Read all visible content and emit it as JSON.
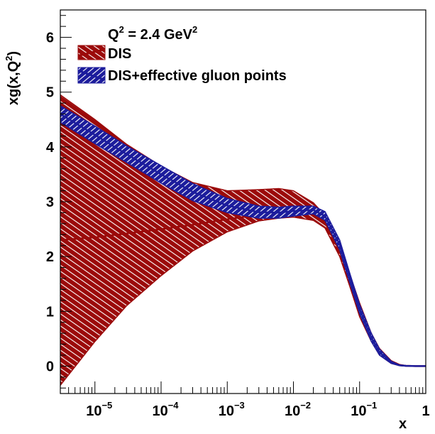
{
  "chart_data": {
    "type": "area",
    "title": "",
    "annotation": "Q2 = 2.4 GeV2",
    "annotation_parts": {
      "q": "Q",
      "q_exp": "2",
      "mid": " = 2.4 GeV",
      "unit_exp": "2"
    },
    "xlabel": "x",
    "ylabel_parts": {
      "base": "xg(x,Q",
      "exp": "2",
      "close": ")"
    },
    "xscale": "log",
    "xlim": [
      3e-06,
      1
    ],
    "ylim": [
      -0.5,
      6.5
    ],
    "x_ticks": [
      {
        "value": 1e-05,
        "base": "10",
        "exp": "−5"
      },
      {
        "value": 0.0001,
        "base": "10",
        "exp": "−4"
      },
      {
        "value": 0.001,
        "base": "10",
        "exp": "−3"
      },
      {
        "value": 0.01,
        "base": "10",
        "exp": "−2"
      },
      {
        "value": 0.1,
        "base": "10",
        "exp": "−1"
      },
      {
        "value": 1,
        "base": "1",
        "exp": ""
      }
    ],
    "y_ticks": [
      0,
      1,
      2,
      3,
      4,
      5,
      6
    ],
    "series": [
      {
        "name": "DIS",
        "color": "#9b0a0a",
        "hatch_color": "#ffffff",
        "x": [
          3e-06,
          1e-05,
          3e-05,
          0.0001,
          0.0003,
          0.001,
          0.003,
          0.006,
          0.01,
          0.02,
          0.03,
          0.05,
          0.07,
          0.1,
          0.15,
          0.2,
          0.3,
          0.4,
          0.5,
          0.7,
          1
        ],
        "upper": [
          4.95,
          4.5,
          4.05,
          3.65,
          3.35,
          3.2,
          3.22,
          3.24,
          3.2,
          2.98,
          2.75,
          2.25,
          1.7,
          1.15,
          0.6,
          0.32,
          0.1,
          0.03,
          0.01,
          0.0,
          0.0
        ],
        "central": [
          2.3,
          2.35,
          2.42,
          2.5,
          2.58,
          2.68,
          2.76,
          2.8,
          2.82,
          2.78,
          2.62,
          2.1,
          1.58,
          1.0,
          0.52,
          0.26,
          0.07,
          0.02,
          0.005,
          0.0,
          0.0
        ],
        "lower": [
          -0.35,
          0.45,
          1.1,
          1.65,
          2.1,
          2.45,
          2.65,
          2.7,
          2.72,
          2.66,
          2.52,
          2.0,
          1.48,
          0.9,
          0.45,
          0.2,
          0.05,
          0.01,
          0.0,
          0.0,
          0.0
        ]
      },
      {
        "name": "DIS+effective gluon points",
        "color": "#1c1c9c",
        "hatch_color": "#ffffff",
        "x": [
          3e-06,
          1e-05,
          3e-05,
          0.0001,
          0.0003,
          0.001,
          0.003,
          0.006,
          0.01,
          0.02,
          0.03,
          0.05,
          0.07,
          0.1,
          0.15,
          0.2,
          0.3,
          0.4,
          0.5,
          0.7,
          1
        ],
        "upper": [
          4.75,
          4.38,
          4.02,
          3.66,
          3.33,
          3.06,
          2.92,
          2.9,
          2.92,
          2.92,
          2.82,
          2.3,
          1.72,
          1.12,
          0.6,
          0.31,
          0.09,
          0.02,
          0.01,
          0.0,
          0.0
        ],
        "central": [
          4.6,
          4.22,
          3.87,
          3.5,
          3.18,
          2.93,
          2.81,
          2.8,
          2.83,
          2.85,
          2.74,
          2.22,
          1.64,
          1.04,
          0.52,
          0.25,
          0.07,
          0.015,
          0.005,
          0.0,
          0.0
        ],
        "lower": [
          4.45,
          4.06,
          3.72,
          3.34,
          3.02,
          2.8,
          2.7,
          2.7,
          2.74,
          2.78,
          2.66,
          2.12,
          1.55,
          0.96,
          0.45,
          0.2,
          0.05,
          0.01,
          0.0,
          0.0,
          0.0
        ]
      }
    ],
    "legend": [
      {
        "label": "DIS"
      },
      {
        "label": "DIS+effective gluon points"
      }
    ]
  }
}
